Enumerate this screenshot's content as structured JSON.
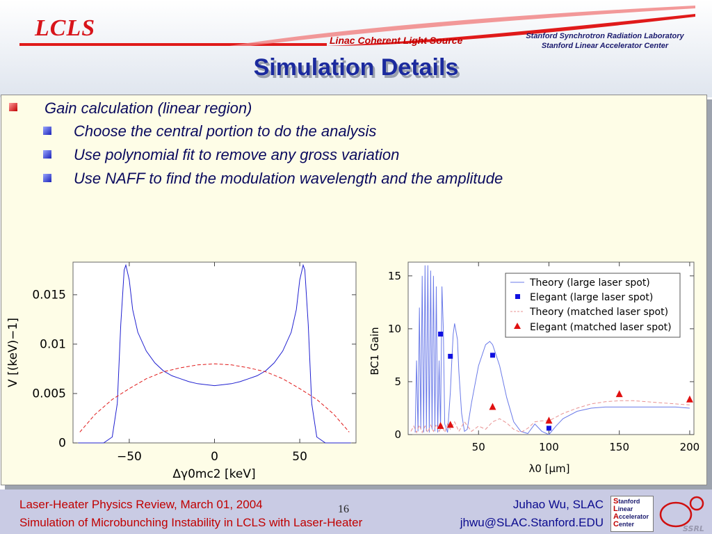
{
  "header": {
    "logo": "LCLS",
    "subtitle": "Linac Coherent Light Source",
    "org_line1": "Stanford Synchrotron Radiation Laboratory",
    "org_line2": "Stanford Linear Accelerator Center",
    "title": "Simulation Details"
  },
  "bullets": {
    "main": "Gain calculation (linear region)",
    "sub": [
      "Choose the central portion to do the analysis",
      "Use polynomial fit to remove any gross variation",
      "Use NAFF to find the modulation wavelength and the amplitude"
    ]
  },
  "footer": {
    "left1": "Laser-Heater Physics Review, March 01, 2004",
    "left2": "Simulation of Microbunching Instability in LCLS with Laser-Heater",
    "page": "16",
    "author": "Juhao Wu, SLAC",
    "email": "jhwu@SLAC.Stanford.EDU",
    "ssrl_logo": {
      "S": "tanford",
      "L": "inear",
      "A": "ccelerator",
      "C": "enter"
    },
    "ssrl_text": "SSRL"
  },
  "chart_data": [
    {
      "type": "line",
      "xlabel": "Δγ0mc2 [keV]",
      "ylabel": "V [(keV)−1]",
      "xlim": [
        -83,
        83
      ],
      "ylim": [
        0,
        0.0183
      ],
      "xticks": [
        {
          "v": -50,
          "label": "−50"
        },
        {
          "v": 0,
          "label": "0"
        },
        {
          "v": 50,
          "label": "50"
        }
      ],
      "yticks": [
        {
          "v": 0,
          "label": "0"
        },
        {
          "v": 0.005,
          "label": "0.005"
        },
        {
          "v": 0.01,
          "label": "0.01"
        },
        {
          "v": 0.015,
          "label": "0.015"
        }
      ],
      "series": [
        {
          "style": "solid",
          "color": "#1f1fd0",
          "x": [
            -80,
            -65,
            -60,
            -57,
            -55,
            -53,
            -52,
            -50,
            -48,
            -45,
            -40,
            -35,
            -30,
            -25,
            -20,
            -15,
            -10,
            -5,
            0,
            5,
            10,
            15,
            20,
            25,
            30,
            35,
            40,
            45,
            48,
            50,
            52,
            53,
            55,
            57,
            60,
            65,
            80
          ],
          "y": [
            0,
            0,
            0.0006,
            0.004,
            0.012,
            0.0175,
            0.018,
            0.0165,
            0.0135,
            0.0112,
            0.0093,
            0.0081,
            0.0073,
            0.0068,
            0.0065,
            0.0062,
            0.006,
            0.0059,
            0.0058,
            0.0059,
            0.006,
            0.0062,
            0.0065,
            0.0068,
            0.0073,
            0.0081,
            0.0093,
            0.0112,
            0.0135,
            0.0165,
            0.018,
            0.0175,
            0.012,
            0.004,
            0.0006,
            0,
            0
          ]
        },
        {
          "style": "dashed",
          "color": "#e01818",
          "x": [
            -79,
            -70,
            -60,
            -50,
            -40,
            -30,
            -20,
            -10,
            0,
            10,
            20,
            30,
            40,
            50,
            60,
            70,
            79
          ],
          "y": [
            0.0011,
            0.0029,
            0.0044,
            0.0055,
            0.0065,
            0.0072,
            0.0076,
            0.0079,
            0.008,
            0.0079,
            0.0076,
            0.0072,
            0.0065,
            0.0055,
            0.0044,
            0.0029,
            0.0011
          ]
        }
      ]
    },
    {
      "type": "line",
      "xlabel": "λ0 [μm]",
      "ylabel": "BC1 Gain",
      "xlim": [
        0,
        203
      ],
      "ylim": [
        0,
        16.3
      ],
      "xticks": [
        {
          "v": 50,
          "label": "50"
        },
        {
          "v": 100,
          "label": "100"
        },
        {
          "v": 150,
          "label": "150"
        },
        {
          "v": 200,
          "label": "200"
        }
      ],
      "yticks": [
        {
          "v": 0,
          "label": "0"
        },
        {
          "v": 5,
          "label": "5"
        },
        {
          "v": 10,
          "label": "10"
        },
        {
          "v": 15,
          "label": "15"
        }
      ],
      "legend_position": "top-right",
      "series": [
        {
          "name": "Theory (large laser spot)",
          "style": "solid",
          "color": "#6a7ae8",
          "x": [
            5,
            6,
            7,
            8,
            9,
            10,
            11,
            12,
            13,
            14,
            15,
            16,
            17,
            18,
            19,
            20,
            21,
            22,
            23,
            24,
            25,
            26,
            28,
            30,
            31,
            32,
            33,
            35,
            36,
            38,
            40,
            42,
            45,
            50,
            55,
            58,
            60,
            65,
            70,
            75,
            80,
            85,
            90,
            95,
            100,
            105,
            110,
            120,
            130,
            140,
            150,
            160,
            170,
            180,
            190,
            200
          ],
          "y": [
            0.2,
            7,
            0.3,
            12,
            0.5,
            15,
            0.2,
            16,
            0.3,
            16,
            0.2,
            15.5,
            0.5,
            15,
            0.3,
            14,
            0.2,
            7,
            0.5,
            14,
            10,
            1,
            0.2,
            4,
            7,
            9.5,
            10.5,
            9,
            6,
            2,
            0.3,
            0.5,
            3,
            6.5,
            8.5,
            8.8,
            8.5,
            6.5,
            3.5,
            1.2,
            0.3,
            0.1,
            1,
            0.3,
            0,
            0.8,
            1.5,
            2.2,
            2.5,
            2.6,
            2.6,
            2.6,
            2.6,
            2.6,
            2.6,
            2.5
          ]
        },
        {
          "name": "Elegant (large laser spot)",
          "style": "marker-square",
          "color": "#1010e0",
          "x": [
            23,
            30,
            60,
            100
          ],
          "y": [
            9.5,
            7.4,
            7.5,
            0.6
          ]
        },
        {
          "name": "Theory (matched laser spot)",
          "style": "dashed",
          "color": "#e89090",
          "x": [
            2,
            4,
            6,
            8,
            10,
            12,
            14,
            16,
            18,
            20,
            22,
            24,
            26,
            28,
            30,
            33,
            36,
            40,
            45,
            50,
            55,
            60,
            65,
            70,
            75,
            80,
            85,
            90,
            95,
            100,
            110,
            120,
            130,
            140,
            150,
            160,
            170,
            180,
            190,
            200
          ],
          "y": [
            0.3,
            0.8,
            0.2,
            0.9,
            0.2,
            0.8,
            0.2,
            0.9,
            0.3,
            1,
            0.3,
            0.9,
            0.2,
            1,
            0.5,
            1.2,
            0.3,
            1.2,
            0.3,
            0.8,
            0.5,
            1.2,
            1.5,
            1.1,
            0.5,
            0.2,
            0.6,
            1.2,
            1.3,
            1.3,
            2,
            2.5,
            2.9,
            3.1,
            3.2,
            3.2,
            3.1,
            3.0,
            2.9,
            2.8
          ]
        },
        {
          "name": "Elegant (matched laser spot)",
          "style": "marker-triangle",
          "color": "#e01010",
          "x": [
            23,
            30,
            60,
            100,
            150,
            200
          ],
          "y": [
            0.8,
            0.9,
            2.6,
            1.3,
            3.8,
            3.3
          ]
        }
      ]
    }
  ]
}
